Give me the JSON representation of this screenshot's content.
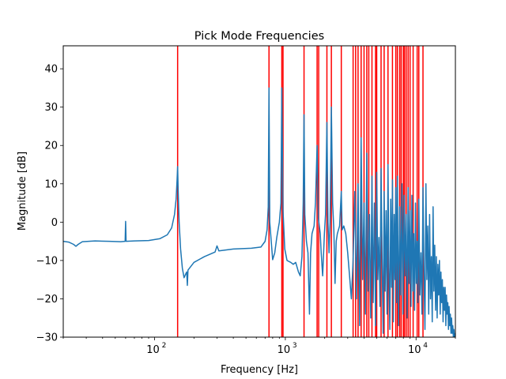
{
  "chart_data": {
    "type": "line",
    "title": "Pick Mode Frequencies",
    "xlabel": "Frequency [Hz]",
    "ylabel": "Magnitude [dB]",
    "xscale": "log",
    "xlim": [
      20,
      20000
    ],
    "ylim": [
      -30,
      46
    ],
    "grid": false,
    "x_ticks": [
      {
        "value": 100,
        "label": "10",
        "exp": "2"
      },
      {
        "value": 1000,
        "label": "10",
        "exp": "3"
      },
      {
        "value": 10000,
        "label": "10",
        "exp": "4"
      }
    ],
    "y_ticks": [
      {
        "value": -30,
        "label": "−30"
      },
      {
        "value": -20,
        "label": "−20"
      },
      {
        "value": -10,
        "label": "−10"
      },
      {
        "value": 0,
        "label": "0"
      },
      {
        "value": 10,
        "label": "10"
      },
      {
        "value": 20,
        "label": "20"
      },
      {
        "value": 30,
        "label": "30"
      },
      {
        "value": 40,
        "label": "40"
      }
    ],
    "series": [
      {
        "color": "#1f77b4",
        "points": [
          [
            20,
            -5
          ],
          [
            22,
            -5.2
          ],
          [
            24,
            -5.8
          ],
          [
            25,
            -6.3
          ],
          [
            26,
            -5.8
          ],
          [
            28,
            -5.1
          ],
          [
            35,
            -4.9
          ],
          [
            45,
            -5.0
          ],
          [
            55,
            -5.1
          ],
          [
            59.5,
            -5.0
          ],
          [
            60,
            0.2
          ],
          [
            60.5,
            -5.0
          ],
          [
            70,
            -4.9
          ],
          [
            90,
            -4.8
          ],
          [
            110,
            -4.3
          ],
          [
            125,
            -3.3
          ],
          [
            135,
            -1.5
          ],
          [
            142,
            2
          ],
          [
            146,
            6
          ],
          [
            148.5,
            11
          ],
          [
            150,
            14.5
          ],
          [
            151.5,
            8
          ],
          [
            154,
            0
          ],
          [
            158,
            -7
          ],
          [
            163,
            -12
          ],
          [
            168,
            -14.5
          ],
          [
            173,
            -13.5
          ],
          [
            176,
            -13
          ],
          [
            178,
            -16.5
          ],
          [
            180,
            -12.5
          ],
          [
            200,
            -10.5
          ],
          [
            240,
            -9
          ],
          [
            290,
            -7.8
          ],
          [
            300,
            -6.2
          ],
          [
            310,
            -7.5
          ],
          [
            400,
            -7
          ],
          [
            550,
            -6.8
          ],
          [
            650,
            -6.5
          ],
          [
            700,
            -5
          ],
          [
            725,
            -2
          ],
          [
            740,
            4
          ],
          [
            750,
            35
          ],
          [
            760,
            0
          ],
          [
            780,
            -5
          ],
          [
            800,
            -9.8
          ],
          [
            830,
            -8
          ],
          [
            860,
            -4
          ],
          [
            900,
            0
          ],
          [
            925,
            5
          ],
          [
            940,
            35
          ],
          [
            960,
            3
          ],
          [
            990,
            -7
          ],
          [
            1030,
            -10
          ],
          [
            1100,
            -10.5
          ],
          [
            1150,
            -11
          ],
          [
            1200,
            -10.5
          ],
          [
            1260,
            -13
          ],
          [
            1300,
            -14
          ],
          [
            1340,
            -9
          ],
          [
            1370,
            5
          ],
          [
            1390,
            28
          ],
          [
            1410,
            2
          ],
          [
            1450,
            -5
          ],
          [
            1490,
            -8
          ],
          [
            1530,
            -24
          ],
          [
            1560,
            -8
          ],
          [
            1600,
            -3
          ],
          [
            1660,
            -1
          ],
          [
            1700,
            5
          ],
          [
            1750,
            20
          ],
          [
            1790,
            1
          ],
          [
            1850,
            -3
          ],
          [
            1880,
            -8
          ],
          [
            1930,
            -14
          ],
          [
            1990,
            -3
          ],
          [
            2030,
            2
          ],
          [
            2080,
            26
          ],
          [
            2120,
            0
          ],
          [
            2160,
            -8
          ],
          [
            2200,
            0
          ],
          [
            2250,
            30
          ],
          [
            2300,
            5
          ],
          [
            2350,
            -2
          ],
          [
            2400,
            -16
          ],
          [
            2450,
            -5
          ],
          [
            2500,
            -3
          ],
          [
            2600,
            -1
          ],
          [
            2680,
            8
          ],
          [
            2720,
            -2
          ],
          [
            2800,
            -1
          ],
          [
            2900,
            -3
          ],
          [
            3000,
            -8
          ],
          [
            3100,
            -14
          ],
          [
            3200,
            -20
          ],
          [
            3300,
            -10
          ],
          [
            3400,
            8
          ],
          [
            3500,
            -20
          ],
          [
            3600,
            10
          ],
          [
            3700,
            -27
          ],
          [
            3800,
            22
          ],
          [
            3900,
            -15
          ],
          [
            4000,
            5
          ],
          [
            4100,
            -24
          ],
          [
            4200,
            18
          ],
          [
            4300,
            -18
          ],
          [
            4400,
            2
          ],
          [
            4500,
            -25
          ],
          [
            4600,
            12
          ],
          [
            4700,
            -21
          ],
          [
            4800,
            5
          ],
          [
            4900,
            -27
          ],
          [
            5000,
            13
          ],
          [
            5100,
            -15
          ],
          [
            5200,
            -4
          ],
          [
            5300,
            -22
          ],
          [
            5400,
            14
          ],
          [
            5500,
            -10
          ],
          [
            5600,
            -29
          ],
          [
            5700,
            8
          ],
          [
            5800,
            -18
          ],
          [
            5900,
            3
          ],
          [
            6000,
            -24
          ],
          [
            6100,
            15
          ],
          [
            6200,
            -12
          ],
          [
            6300,
            -28
          ],
          [
            6400,
            6
          ],
          [
            6500,
            -17
          ],
          [
            6600,
            11
          ],
          [
            6700,
            -26
          ],
          [
            6800,
            2
          ],
          [
            6900,
            -15
          ],
          [
            7000,
            9
          ],
          [
            7100,
            -21
          ],
          [
            7200,
            12
          ],
          [
            7350,
            -27
          ],
          [
            7500,
            4
          ],
          [
            7650,
            -19
          ],
          [
            7800,
            10
          ],
          [
            7950,
            -24
          ],
          [
            8100,
            7
          ],
          [
            8250,
            -14
          ],
          [
            8400,
            2
          ],
          [
            8550,
            -25
          ],
          [
            8700,
            9
          ],
          [
            8850,
            -16
          ],
          [
            9000,
            3
          ],
          [
            9150,
            -22
          ],
          [
            9300,
            7
          ],
          [
            9450,
            -18
          ],
          [
            9600,
            -3
          ],
          [
            9750,
            -23
          ],
          [
            9900,
            5
          ],
          [
            10050,
            -16
          ],
          [
            10200,
            -5
          ],
          [
            10350,
            -21
          ],
          [
            10500,
            6
          ],
          [
            10700,
            -19
          ],
          [
            10900,
            -8
          ],
          [
            11100,
            -24
          ],
          [
            11300,
            9
          ],
          [
            11500,
            -13
          ],
          [
            11700,
            -28
          ],
          [
            11900,
            10
          ],
          [
            12100,
            -15
          ],
          [
            12300,
            -1
          ],
          [
            12500,
            -24
          ],
          [
            12700,
            2
          ],
          [
            12900,
            -20
          ],
          [
            13100,
            -9
          ],
          [
            13300,
            -26
          ],
          [
            13500,
            4
          ],
          [
            13700,
            -18
          ],
          [
            13900,
            -6
          ],
          [
            14100,
            -23
          ],
          [
            14300,
            -9
          ],
          [
            14500,
            -25
          ],
          [
            14700,
            -11
          ],
          [
            14900,
            -19
          ],
          [
            15100,
            -10
          ],
          [
            15300,
            -24
          ],
          [
            15500,
            -13
          ],
          [
            15700,
            -21
          ],
          [
            15900,
            -15
          ],
          [
            16100,
            -26
          ],
          [
            16300,
            -17
          ],
          [
            16500,
            -23
          ],
          [
            16700,
            -17
          ],
          [
            16900,
            -27
          ],
          [
            17100,
            -19
          ],
          [
            17300,
            -24
          ],
          [
            17500,
            -21
          ],
          [
            17700,
            -28
          ],
          [
            17900,
            -22
          ],
          [
            18100,
            -27
          ],
          [
            18300,
            -24
          ],
          [
            18500,
            -29
          ],
          [
            18700,
            -25
          ],
          [
            18900,
            -29
          ],
          [
            19100,
            -27
          ],
          [
            19300,
            -30
          ],
          [
            19500,
            -28
          ],
          [
            19700,
            -30
          ],
          [
            20000,
            -29
          ]
        ]
      }
    ],
    "vlines": {
      "color": "#ff0000",
      "x": [
        150,
        750,
        940,
        960,
        1390,
        1750,
        1800,
        2080,
        2250,
        2680,
        3300,
        3450,
        3600,
        3800,
        4000,
        4200,
        4350,
        4600,
        4900,
        5000,
        5400,
        5700,
        6100,
        6600,
        7000,
        7200,
        7500,
        7700,
        8000,
        8150,
        8400,
        8700,
        9000,
        9500,
        10200,
        10500,
        11300
      ]
    }
  }
}
